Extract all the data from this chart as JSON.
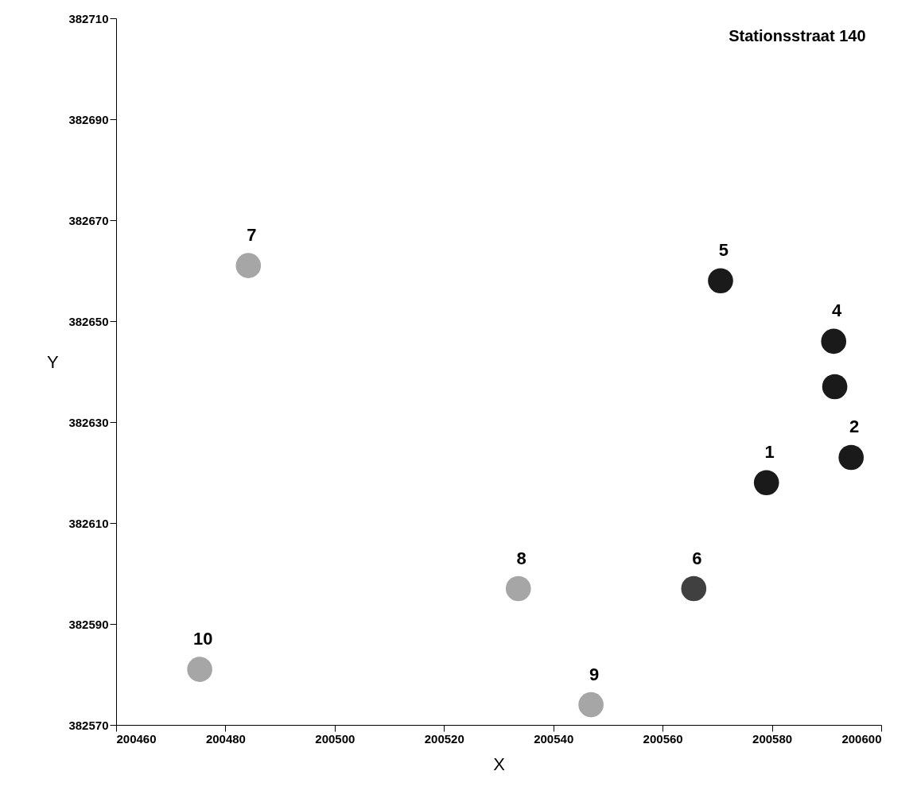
{
  "chart_data": {
    "type": "scatter",
    "title": "Stationsstraat 140",
    "xlabel": "X",
    "ylabel": "Y",
    "x": [
      200579,
      200594.5,
      200591.5,
      200591.3,
      200570.6,
      200565.7,
      200484.2,
      200533.6,
      200546.9,
      200475.3
    ],
    "values": [
      382618,
      382623,
      382637,
      382646,
      382658,
      382597,
      382661,
      382597,
      382574,
      382581
    ],
    "colors": [
      "#1a1a1a",
      "#1a1a1a",
      "#1a1a1a",
      "#1a1a1a",
      "#1a1a1a",
      "#404040",
      "#a6a6a6",
      "#a6a6a6",
      "#a6a6a6",
      "#a6a6a6"
    ],
    "xlim": [
      200460,
      200600
    ],
    "xticks": [
      200460,
      200480,
      200500,
      200520,
      200540,
      200560,
      200580,
      200600
    ],
    "ylim": [
      382570,
      382710
    ],
    "yticks": [
      382570,
      382590,
      382610,
      382630,
      382650,
      382670,
      382690,
      382710
    ],
    "grid": false,
    "annotations": [
      {
        "text": "1",
        "x": 200579,
        "y": 382618
      },
      {
        "text": "2",
        "x": 200594.5,
        "y": 382623
      },
      {
        "text": "4",
        "x": 200591.3,
        "y": 382646
      },
      {
        "text": "5",
        "x": 200570.6,
        "y": 382658
      },
      {
        "text": "6",
        "x": 200565.7,
        "y": 382597
      },
      {
        "text": "7",
        "x": 200484.2,
        "y": 382661
      },
      {
        "text": "8",
        "x": 200533.6,
        "y": 382597
      },
      {
        "text": "9",
        "x": 200546.9,
        "y": 382574
      },
      {
        "text": "10",
        "x": 200475.3,
        "y": 382581
      }
    ]
  }
}
